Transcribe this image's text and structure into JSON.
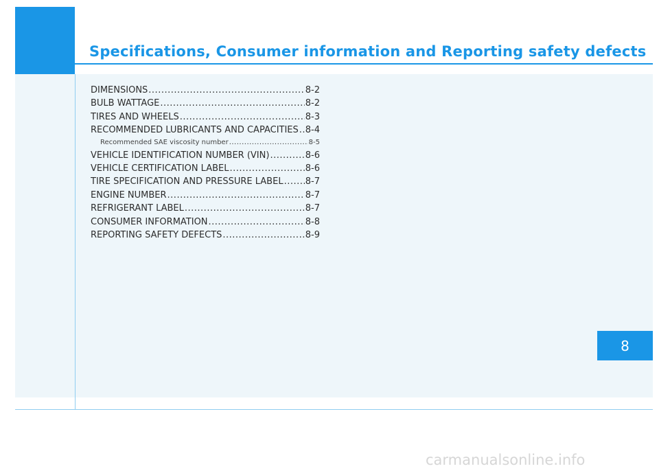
{
  "header": {
    "title": "Specifications, Consumer information and Reporting safety defects"
  },
  "toc": [
    {
      "label": "DIMENSIONS",
      "page": "8-2",
      "level": 1
    },
    {
      "label": "BULB WATTAGE",
      "page": "8-2",
      "level": 1
    },
    {
      "label": "TIRES AND WHEELS",
      "page": "8-3",
      "level": 1
    },
    {
      "label": "RECOMMENDED LUBRICANTS AND CAPACITIES",
      "page": "8-4",
      "level": 1
    },
    {
      "label": "Recommended SAE viscosity number",
      "page": "8-5",
      "level": 2
    },
    {
      "label": "VEHICLE IDENTIFICATION NUMBER (VIN)",
      "page": "8-6",
      "level": 1
    },
    {
      "label": "VEHICLE CERTIFICATION LABEL",
      "page": "8-6",
      "level": 1
    },
    {
      "label": "TIRE SPECIFICATION AND PRESSURE LABEL",
      "page": "8-7",
      "level": 1
    },
    {
      "label": "ENGINE NUMBER",
      "page": "8-7",
      "level": 1
    },
    {
      "label": "REFRIGERANT LABEL",
      "page": "8-7",
      "level": 1
    },
    {
      "label": "CONSUMER INFORMATION",
      "page": "8-8",
      "level": 1
    },
    {
      "label": "REPORTING SAFETY DEFECTS",
      "page": "8-9",
      "level": 1
    }
  ],
  "chapter_tab": {
    "number": "8"
  },
  "watermark": {
    "text": "carmanualsonline.info"
  },
  "colors": {
    "accent": "#1a96e6",
    "panel": "#eef6fa",
    "text": "#2c2c2c"
  }
}
